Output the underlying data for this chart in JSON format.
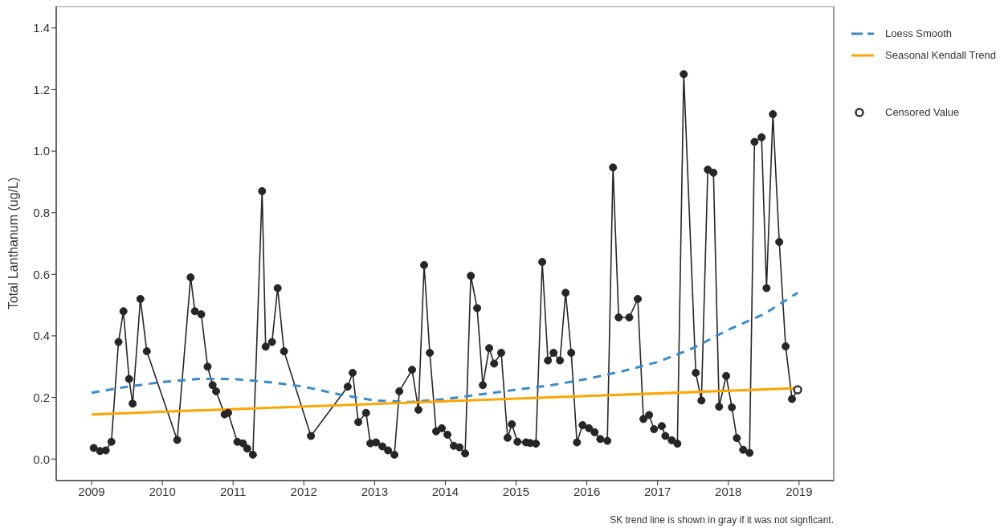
{
  "chart_data": {
    "type": "line",
    "ylabel": "Total Lanthanum (ug/L)",
    "xlim": [
      2008.5,
      2019.49
    ],
    "xticks": [
      2009,
      2010,
      2011,
      2012,
      2013,
      2014,
      2015,
      2016,
      2017,
      2018,
      2019
    ],
    "ylim": [
      -0.07,
      1.47
    ],
    "yticks": [
      {
        "value": 0,
        "label": "0.0"
      },
      0.2,
      0.4,
      0.6,
      0.8,
      {
        "value": 1,
        "label": "1.0"
      },
      1.2,
      1.4
    ],
    "grid": false,
    "legend": "top right",
    "annotations": [
      "SK trend line is shown in gray if it was not signficant."
    ],
    "series": [
      {
        "color": "#262626",
        "marker": "circle",
        "line_style": "solid",
        "x": [
          2009.03,
          2009.12,
          2009.2,
          2009.28,
          2009.38,
          2009.45,
          2009.53,
          2009.58,
          2009.69,
          2009.78,
          2010.21,
          2010.4,
          2010.46,
          2010.55,
          2010.64,
          2010.71,
          2010.76,
          2010.88,
          2010.93,
          2011.06,
          2011.14,
          2011.2,
          2011.28,
          2011.41,
          2011.46,
          2011.55,
          2011.63,
          2011.72,
          2012.1,
          2012.62,
          2012.69,
          2012.77,
          2012.88,
          2012.94,
          2013.02,
          2013.11,
          2013.19,
          2013.28,
          2013.35,
          2013.53,
          2013.62,
          2013.7,
          2013.78,
          2013.87,
          2013.95,
          2014.03,
          2014.12,
          2014.2,
          2014.28,
          2014.36,
          2014.45,
          2014.53,
          2014.62,
          2014.69,
          2014.79,
          2014.88,
          2014.94,
          2015.02,
          2015.14,
          2015.2,
          2015.28,
          2015.37,
          2015.45,
          2015.53,
          2015.62,
          2015.7,
          2015.78,
          2015.86,
          2015.94,
          2016.03,
          2016.11,
          2016.19,
          2016.29,
          2016.37,
          2016.45,
          2016.6,
          2016.72,
          2016.8,
          2016.88,
          2016.95,
          2017.06,
          2017.11,
          2017.2,
          2017.28,
          2017.37,
          2017.54,
          2017.62,
          2017.71,
          2017.79,
          2017.87,
          2017.97,
          2018.05,
          2018.12,
          2018.21,
          2018.3,
          2018.37,
          2018.47,
          2018.54,
          2018.63,
          2018.72,
          2018.81,
          2018.9,
          2018.98
        ],
        "values": [
          0.036,
          0.026,
          0.028,
          0.056,
          0.38,
          0.48,
          0.26,
          0.18,
          0.52,
          0.35,
          0.062,
          0.59,
          0.48,
          0.47,
          0.3,
          0.24,
          0.22,
          0.145,
          0.15,
          0.056,
          0.051,
          0.034,
          0.014,
          0.87,
          0.365,
          0.38,
          0.555,
          0.35,
          0.075,
          0.235,
          0.28,
          0.12,
          0.15,
          0.051,
          0.054,
          0.041,
          0.028,
          0.014,
          0.22,
          0.29,
          0.16,
          0.63,
          0.345,
          0.09,
          0.1,
          0.079,
          0.043,
          0.038,
          0.018,
          0.595,
          0.49,
          0.24,
          0.36,
          0.31,
          0.345,
          0.069,
          0.113,
          0.056,
          0.054,
          0.052,
          0.05,
          0.64,
          0.32,
          0.345,
          0.32,
          0.54,
          0.345,
          0.054,
          0.11,
          0.1,
          0.087,
          0.065,
          0.059,
          0.947,
          0.46,
          0.46,
          0.52,
          0.13,
          0.143,
          0.097,
          0.107,
          0.075,
          0.061,
          0.05,
          1.25,
          0.28,
          0.19,
          0.94,
          0.93,
          0.17,
          0.27,
          0.168,
          0.068,
          0.03,
          0.02,
          1.03,
          1.045,
          0.555,
          1.12,
          0.705,
          0.366,
          0.195,
          0.225
        ]
      },
      {
        "name": "Loess Smooth",
        "color": "#3b8bc9",
        "marker": "none",
        "line_style": "dashed",
        "x": [
          2009,
          2009.5,
          2010,
          2010.5,
          2011,
          2011.5,
          2012,
          2012.5,
          2013,
          2013.5,
          2014,
          2014.5,
          2015,
          2015.5,
          2016,
          2016.5,
          2017,
          2017.5,
          2018,
          2018.5,
          2018.98
        ],
        "values": [
          0.215,
          0.235,
          0.25,
          0.26,
          0.26,
          0.25,
          0.235,
          0.21,
          0.19,
          0.185,
          0.195,
          0.21,
          0.225,
          0.24,
          0.26,
          0.285,
          0.315,
          0.36,
          0.42,
          0.47,
          0.54
        ]
      },
      {
        "name": "Seasonal Kendall Trend",
        "color": "#ffa500",
        "marker": "none",
        "line_style": "solid",
        "x": [
          2009,
          2018.98
        ],
        "values": [
          0.145,
          0.23
        ]
      },
      {
        "type": "scatter",
        "name": "Censored Value",
        "color": "#333333",
        "marker": "circle",
        "x": [
          2018.98
        ],
        "values": [
          0.225
        ]
      }
    ]
  }
}
